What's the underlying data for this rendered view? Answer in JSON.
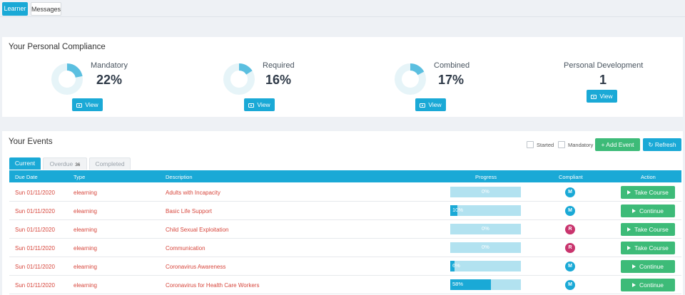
{
  "top_tabs": [
    "Learner",
    "Messages"
  ],
  "compliance": {
    "title": "Your Personal Compliance",
    "view_label": "View",
    "items": [
      {
        "label": "Mandatory",
        "value": "22%",
        "percent": 22
      },
      {
        "label": "Required",
        "value": "16%",
        "percent": 16
      },
      {
        "label": "Combined",
        "value": "17%",
        "percent": 17
      },
      {
        "label": "Personal Development",
        "value": "1"
      }
    ]
  },
  "events": {
    "title": "Your Events",
    "filters": {
      "started": "Started",
      "mandatory": "Mandatory"
    },
    "add_label": "+ Add Event",
    "refresh_label": "Refresh",
    "tabs": [
      {
        "label": "Current"
      },
      {
        "label": "Overdue",
        "count": "36"
      },
      {
        "label": "Completed"
      }
    ],
    "columns": [
      "Due Date",
      "Type",
      "Description",
      "Progress",
      "Compliant",
      "Action"
    ],
    "rows": [
      {
        "due": "Sun 01/11/2020",
        "type": "elearning",
        "desc": "Adults with Incapacity",
        "progress": 0,
        "progress_label": "0%",
        "compliant": "M",
        "action": "Take Course"
      },
      {
        "due": "Sun 01/11/2020",
        "type": "elearning",
        "desc": "Basic Life Support",
        "progress": 10,
        "progress_label": "10%",
        "compliant": "M",
        "action": "Continue"
      },
      {
        "due": "Sun 01/11/2020",
        "type": "elearning",
        "desc": "Child Sexual Exploitation",
        "progress": 0,
        "progress_label": "0%",
        "compliant": "R",
        "action": "Take Course"
      },
      {
        "due": "Sun 01/11/2020",
        "type": "elearning",
        "desc": "Communication",
        "progress": 0,
        "progress_label": "0%",
        "compliant": "R",
        "action": "Take Course"
      },
      {
        "due": "Sun 01/11/2020",
        "type": "elearning",
        "desc": "Coronavirus Awareness",
        "progress": 6,
        "progress_label": "6%",
        "compliant": "M",
        "action": "Continue"
      },
      {
        "due": "Sun 01/11/2020",
        "type": "elearning",
        "desc": "Coronavirus for Health Care Workers",
        "progress": 58,
        "progress_label": "58%",
        "compliant": "M",
        "action": "Continue"
      }
    ]
  },
  "colors": {
    "primary": "#1aa9d6",
    "success": "#3dbb78",
    "mandatory_badge": "#1aa9d6",
    "required_badge": "#c9356e",
    "row_text": "#d7463c",
    "donut_track": "#e6f4f8"
  }
}
